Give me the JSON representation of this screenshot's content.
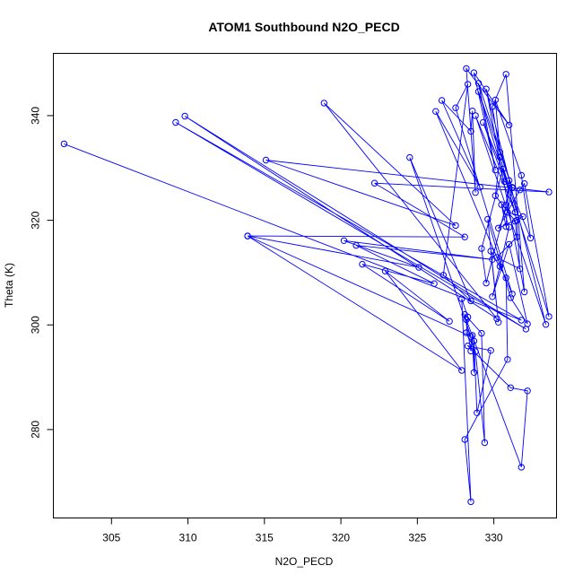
{
  "chart_data": {
    "type": "line",
    "title": "ATOM1 Southbound N2O_PECD",
    "xlabel": "N2O_PECD",
    "ylabel": "Theta (K)",
    "xlim": [
      301.2,
      334.1
    ],
    "ylim": [
      263.1,
      351.9
    ],
    "xticks": [
      305,
      310,
      315,
      320,
      325,
      330
    ],
    "yticks": [
      280,
      300,
      320,
      340
    ],
    "color": "#0000ff",
    "grid": false,
    "series": [
      {
        "points": [
          [
            301.9,
            334.6
          ],
          [
            331.8,
            300.9
          ],
          [
            309.2,
            338.7
          ],
          [
            332.1,
            299.2
          ],
          [
            309.8,
            339.9
          ],
          [
            330.2,
            301.2
          ],
          [
            318.9,
            342.4
          ],
          [
            327.5,
            319.0
          ],
          [
            315.1,
            331.5
          ],
          [
            333.6,
            325.4
          ],
          [
            322.2,
            327.1
          ],
          [
            328.1,
            316.8
          ],
          [
            313.9,
            317.0
          ],
          [
            325.1,
            311.0
          ],
          [
            320.2,
            316.1
          ],
          [
            329.9,
            312.5
          ],
          [
            321.0,
            315.2
          ],
          [
            326.1,
            307.9
          ],
          [
            321.4,
            311.6
          ],
          [
            327.1,
            300.7
          ],
          [
            322.9,
            310.3
          ],
          [
            327.9,
            291.3
          ],
          [
            313.9,
            317.0
          ],
          [
            328.5,
            297.8
          ],
          [
            324.5,
            332.0
          ],
          [
            328.5,
            304.6
          ],
          [
            326.7,
            309.5
          ],
          [
            328.3,
            346.0
          ],
          [
            327.5,
            341.5
          ],
          [
            331.2,
            305.9
          ],
          [
            326.2,
            340.8
          ],
          [
            329.1,
            326.3
          ],
          [
            326.6,
            342.9
          ],
          [
            328.5,
            337.0
          ],
          [
            328.6,
            340.9
          ],
          [
            328.8,
            325.3
          ],
          [
            328.2,
            349.0
          ],
          [
            331.0,
            338.2
          ],
          [
            328.7,
            348.2
          ],
          [
            330.1,
            329.6
          ],
          [
            329.0,
            346.2
          ],
          [
            331.2,
            326.2
          ],
          [
            329.0,
            344.6
          ],
          [
            331.4,
            321.5
          ],
          [
            328.8,
            340.0
          ],
          [
            333.4,
            300.1
          ],
          [
            329.5,
            345.1
          ],
          [
            332.0,
            306.3
          ],
          [
            330.8,
            347.9
          ],
          [
            329.9,
            341.7
          ],
          [
            330.4,
            333.0
          ],
          [
            330.1,
            343.0
          ],
          [
            331.8,
            328.6
          ],
          [
            332.4,
            316.6
          ],
          [
            329.3,
            338.7
          ],
          [
            330.7,
            327.4
          ],
          [
            331.2,
            326.3
          ],
          [
            330.9,
            321.5
          ],
          [
            331.9,
            320.7
          ],
          [
            330.3,
            318.5
          ],
          [
            331.7,
            325.8
          ],
          [
            332.0,
            327.0
          ],
          [
            333.6,
            301.6
          ],
          [
            330.4,
            332.1
          ],
          [
            330.1,
            324.7
          ],
          [
            331.4,
            319.8
          ],
          [
            331.5,
            316.8
          ],
          [
            330.2,
            312.9
          ],
          [
            331.7,
            310.7
          ],
          [
            331.5,
            320.0
          ],
          [
            330.6,
            329.8
          ],
          [
            329.2,
            314.6
          ],
          [
            329.5,
            308.0
          ],
          [
            330.8,
            322.9
          ],
          [
            331.0,
            327.6
          ],
          [
            330.8,
            318.8
          ],
          [
            330.5,
            323.0
          ],
          [
            331.0,
            318.7
          ],
          [
            330.4,
            311.2
          ],
          [
            329.9,
            305.4
          ],
          [
            331.0,
            315.4
          ],
          [
            332.2,
            300.2
          ],
          [
            331.1,
            305.2
          ],
          [
            329.6,
            320.2
          ],
          [
            330.3,
            300.5
          ],
          [
            329.8,
            314.1
          ],
          [
            330.8,
            309.0
          ],
          [
            330.9,
            293.4
          ],
          [
            328.1,
            278.1
          ],
          [
            328.5,
            266.2
          ],
          [
            327.9,
            305.0
          ],
          [
            328.3,
            301.5
          ],
          [
            328.2,
            298.5
          ],
          [
            328.8,
            294.9
          ],
          [
            329.4,
            277.5
          ],
          [
            329.2,
            298.4
          ],
          [
            328.1,
            302.0
          ],
          [
            328.5,
            295.0
          ],
          [
            328.6,
            298.0
          ],
          [
            328.7,
            290.9
          ],
          [
            328.7,
            296.9
          ],
          [
            328.9,
            283.2
          ],
          [
            329.8,
            295.1
          ],
          [
            328.3,
            296.0
          ],
          [
            331.1,
            288.0
          ],
          [
            332.2,
            287.4
          ],
          [
            331.8,
            272.8
          ],
          [
            328.2,
            301.0
          ]
        ]
      }
    ]
  }
}
